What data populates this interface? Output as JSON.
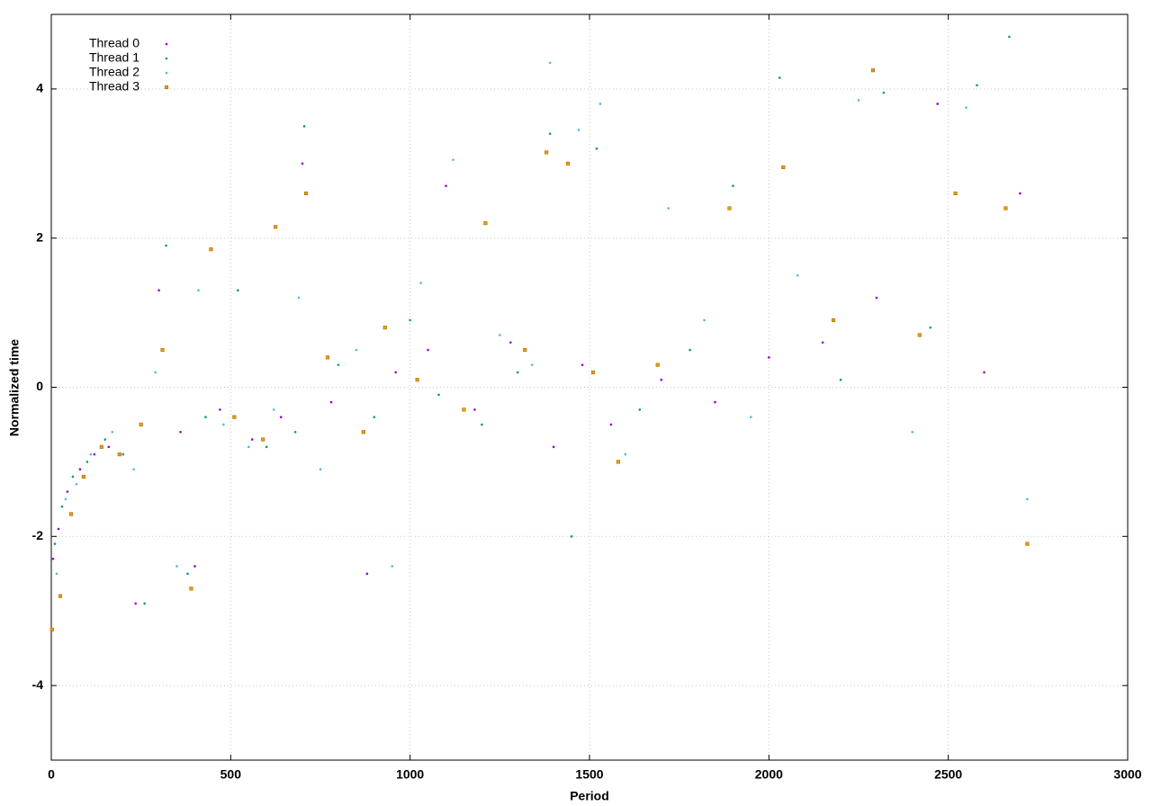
{
  "chart_data": {
    "type": "scatter",
    "xlabel": "Period",
    "ylabel": "Normalized time",
    "xlim": [
      0,
      3000
    ],
    "ylim": [
      -5,
      5
    ],
    "xticks": [
      0,
      500,
      1000,
      1500,
      2000,
      2500,
      3000
    ],
    "yticks": [
      -4,
      -2,
      0,
      2,
      4
    ],
    "grid": true,
    "legend": "upper left",
    "series": [
      {
        "name": "Thread 0",
        "color": "#9400d3",
        "marker": "dot",
        "x": [
          5,
          20,
          45,
          80,
          120,
          160,
          235,
          300,
          360,
          400,
          470,
          560,
          640,
          700,
          780,
          880,
          960,
          1050,
          1100,
          1180,
          1280,
          1400,
          1480,
          1560,
          1700,
          1850,
          2000,
          2150,
          2300,
          2470,
          2600,
          2700
        ],
        "values": [
          -2.3,
          -1.9,
          -1.4,
          -1.1,
          -0.9,
          -0.8,
          -2.9,
          1.3,
          -0.6,
          -2.4,
          -0.3,
          -0.7,
          -0.4,
          3.0,
          -0.2,
          -2.5,
          0.2,
          0.5,
          2.7,
          -0.3,
          0.6,
          -0.8,
          0.3,
          -0.5,
          0.1,
          -0.2,
          0.4,
          0.6,
          1.2,
          3.8,
          0.2,
          2.6
        ]
      },
      {
        "name": "Thread 1",
        "color": "#009e73",
        "marker": "dot",
        "x": [
          10,
          30,
          60,
          100,
          150,
          200,
          260,
          320,
          380,
          430,
          520,
          600,
          680,
          705,
          800,
          900,
          1000,
          1080,
          1200,
          1300,
          1390,
          1450,
          1520,
          1640,
          1780,
          1900,
          2030,
          2200,
          2320,
          2450,
          2580,
          2670
        ],
        "values": [
          -2.1,
          -1.6,
          -1.2,
          -1.0,
          -0.7,
          -0.9,
          -2.9,
          1.9,
          -2.5,
          -0.4,
          1.3,
          -0.8,
          -0.6,
          3.5,
          0.3,
          -0.4,
          0.9,
          -0.1,
          -0.5,
          0.2,
          3.4,
          -2.0,
          3.2,
          -0.3,
          0.5,
          2.7,
          4.15,
          0.1,
          3.95,
          0.8,
          4.05,
          4.7
        ]
      },
      {
        "name": "Thread 2",
        "color": "#56b4e9",
        "marker": "dot",
        "x": [
          15,
          40,
          70,
          110,
          170,
          230,
          290,
          350,
          410,
          480,
          550,
          620,
          690,
          750,
          850,
          950,
          1030,
          1120,
          1250,
          1340,
          1390,
          1470,
          1530,
          1600,
          1720,
          1820,
          1950,
          2080,
          2250,
          2400,
          2550,
          2720
        ],
        "values": [
          -2.5,
          -1.5,
          -1.3,
          -0.9,
          -0.6,
          -1.1,
          0.2,
          -2.4,
          1.3,
          -0.5,
          -0.8,
          -0.3,
          1.2,
          -1.1,
          0.5,
          -2.4,
          1.4,
          3.05,
          0.7,
          0.3,
          4.35,
          3.45,
          3.8,
          -0.9,
          2.4,
          0.9,
          -0.4,
          1.5,
          3.85,
          -0.6,
          3.75,
          -1.5
        ]
      },
      {
        "name": "Thread 3",
        "color": "#e69f00",
        "marker": "square",
        "x": [
          2,
          25,
          55,
          90,
          140,
          190,
          250,
          310,
          390,
          445,
          510,
          590,
          625,
          710,
          770,
          870,
          930,
          1020,
          1150,
          1210,
          1320,
          1380,
          1440,
          1510,
          1580,
          1690,
          1890,
          2040,
          2180,
          2290,
          2420,
          2520,
          2660,
          2720
        ],
        "values": [
          -3.25,
          -2.8,
          -1.7,
          -1.2,
          -0.8,
          -0.9,
          -0.5,
          0.5,
          -2.7,
          1.85,
          -0.4,
          -0.7,
          2.15,
          2.6,
          0.4,
          -0.6,
          0.8,
          0.1,
          -0.3,
          2.2,
          0.5,
          3.15,
          3.0,
          0.2,
          -1.0,
          0.3,
          2.4,
          2.95,
          0.9,
          4.25,
          0.7,
          2.6,
          2.4,
          -2.1
        ]
      }
    ]
  }
}
